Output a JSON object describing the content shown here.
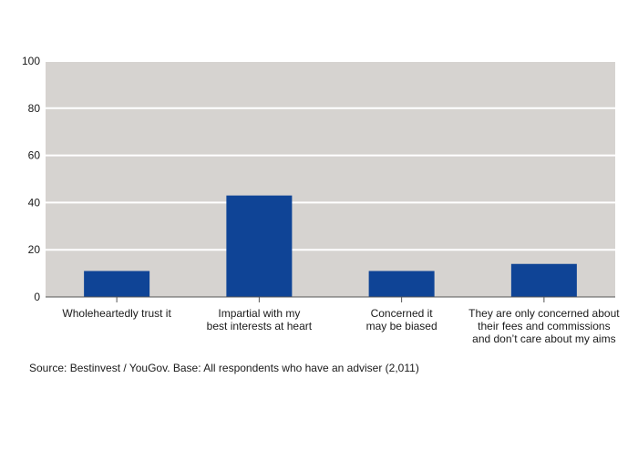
{
  "chart_data": {
    "type": "bar",
    "categories": [
      [
        "Wholeheartedly trust it"
      ],
      [
        "Impartial with my",
        "best interests at heart"
      ],
      [
        "Concerned it",
        "may be biased"
      ],
      [
        "They are only concerned about",
        "their fees and commissions",
        "and don’t care about my aims"
      ]
    ],
    "values": [
      11,
      43,
      11,
      14
    ],
    "ylim": [
      0,
      100
    ],
    "yticks": [
      0,
      20,
      40,
      60,
      80,
      100
    ],
    "grid": true,
    "colors": {
      "bar": "#0f4496",
      "plot_bg": "#d6d3d0",
      "grid": "#ffffff"
    }
  },
  "source": "Source: Bestinvest / YouGov. Base: All respondents who have an adviser (2,011)"
}
